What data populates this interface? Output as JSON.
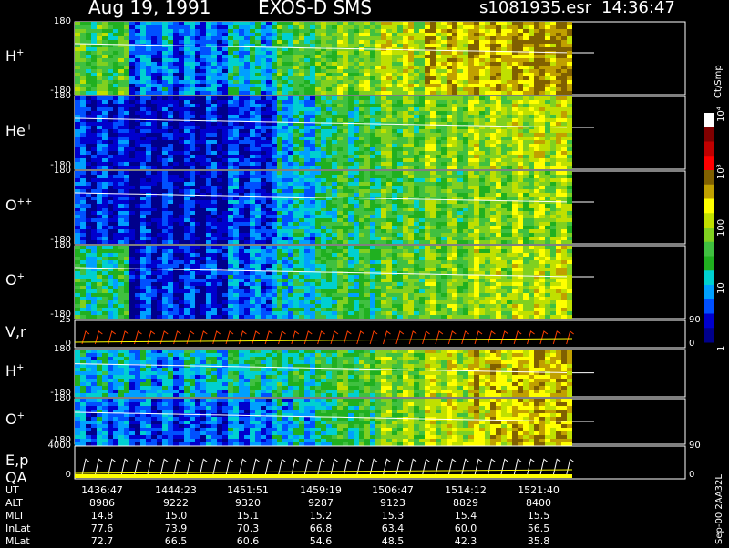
{
  "header": {
    "date": "Aug 19, 1991",
    "instrument": "EXOS-D SMS",
    "file": "s1081935.esr",
    "time": "14:36:47"
  },
  "colorbar": {
    "unit_label": "Ct/Smp",
    "ticks": [
      "1",
      "10",
      "100",
      "10³",
      "10⁴"
    ],
    "colors": [
      "#00008b",
      "#0000cd",
      "#0050ff",
      "#00a0ff",
      "#00d0d0",
      "#20b020",
      "#40c040",
      "#80d020",
      "#c0e000",
      "#ffff00",
      "#c0a000",
      "#806000",
      "#ff0000",
      "#c00000",
      "#800000",
      "#ffffff"
    ]
  },
  "footer_stamp": "Sep-00 2AA32L",
  "chart_data": [
    {
      "type": "heatmap",
      "name": "H+",
      "label_main": "H",
      "label_sup": "+",
      "ylim": [
        -180,
        180
      ],
      "yticks": [
        "180",
        "-180"
      ],
      "activity": [
        0.5,
        0.2,
        0.2,
        0.3,
        0.5,
        0.6,
        0.7,
        0.8,
        0.85,
        0.9,
        0.9
      ]
    },
    {
      "type": "heatmap",
      "name": "He+",
      "label_main": "He",
      "label_sup": "+",
      "ylim": [
        -180,
        180
      ],
      "yticks": [
        "180",
        "-180"
      ],
      "activity": [
        0.1,
        0.05,
        0.05,
        0.1,
        0.3,
        0.45,
        0.55,
        0.6,
        0.65,
        0.7,
        0.7
      ]
    },
    {
      "type": "heatmap",
      "name": "O++",
      "label_main": "O",
      "label_sup": "++",
      "ylim": [
        -180,
        180
      ],
      "yticks": [
        "180",
        "-180"
      ],
      "activity": [
        0.1,
        0.05,
        0.05,
        0.15,
        0.3,
        0.45,
        0.5,
        0.55,
        0.6,
        0.62,
        0.62
      ]
    },
    {
      "type": "heatmap",
      "name": "O+",
      "label_main": "O",
      "label_sup": "+",
      "ylim": [
        -180,
        180
      ],
      "yticks": [
        "180",
        "-180"
      ],
      "activity": [
        0.4,
        0.1,
        0.1,
        0.2,
        0.35,
        0.45,
        0.55,
        0.6,
        0.65,
        0.7,
        0.7
      ]
    },
    {
      "type": "line",
      "name": "V,r",
      "label_main": "V,r",
      "label_sup": "",
      "ylim": [
        0,
        25
      ],
      "yticks": [
        "25",
        "0"
      ],
      "right_ticks": [
        "90",
        "0"
      ]
    },
    {
      "type": "heatmap",
      "name": "H+ (low)",
      "label_main": "H",
      "label_sup": "+",
      "ylim": [
        -180,
        180
      ],
      "yticks": [
        "180",
        "-180"
      ],
      "activity": [
        0.3,
        0.25,
        0.3,
        0.35,
        0.4,
        0.5,
        0.6,
        0.7,
        0.8,
        0.85,
        0.85
      ]
    },
    {
      "type": "heatmap",
      "name": "O+ (low)",
      "label_main": "O",
      "label_sup": "+",
      "ylim": [
        -180,
        180
      ],
      "yticks": [
        "180",
        "-180"
      ],
      "activity": [
        0.2,
        0.15,
        0.15,
        0.2,
        0.3,
        0.45,
        0.6,
        0.7,
        0.8,
        0.85,
        0.85
      ]
    },
    {
      "type": "line",
      "name": "E,p QA",
      "label_main": "E,p",
      "label_sub": "QA",
      "ylim": [
        0,
        4000
      ],
      "yticks": [
        "4000",
        "0"
      ],
      "right_ticks": [
        "90",
        "0"
      ]
    }
  ],
  "ephemeris": {
    "rows": [
      {
        "key": "UT",
        "values": [
          "1436:47",
          "1444:23",
          "1451:51",
          "1459:19",
          "1506:47",
          "1514:12",
          "1521:40"
        ]
      },
      {
        "key": "ALT",
        "values": [
          "8986",
          "9222",
          "9320",
          "9287",
          "9123",
          "8829",
          "8400"
        ]
      },
      {
        "key": "MLT",
        "values": [
          "14.8",
          "15.0",
          "15.1",
          "15.2",
          "15.3",
          "15.4",
          "15.5"
        ]
      },
      {
        "key": "InLat",
        "values": [
          "77.6",
          "73.9",
          "70.3",
          "66.8",
          "63.4",
          "60.0",
          "56.5"
        ]
      },
      {
        "key": "MLat",
        "values": [
          "72.7",
          "66.5",
          "60.6",
          "54.6",
          "48.5",
          "42.3",
          "35.8"
        ]
      }
    ]
  }
}
